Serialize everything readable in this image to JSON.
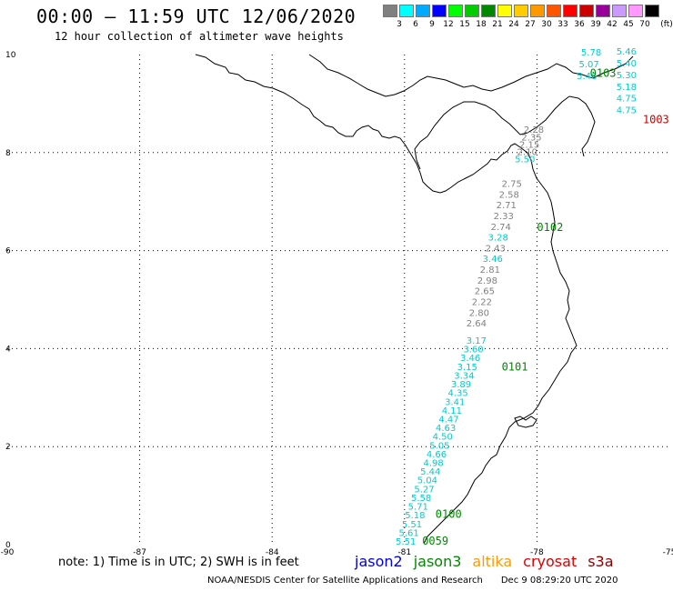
{
  "header": {
    "title": "00:00 – 11:59 UTC 12/06/2020",
    "subtitle": "12 hour collection of altimeter wave heights"
  },
  "colorbar": {
    "unit": "(ft)",
    "items": [
      {
        "label": "3",
        "color": "#808080"
      },
      {
        "label": "6",
        "color": "#00ffff"
      },
      {
        "label": "9",
        "color": "#00aaff"
      },
      {
        "label": "12",
        "color": "#0000ff"
      },
      {
        "label": "15",
        "color": "#00ff00"
      },
      {
        "label": "18",
        "color": "#00cc00"
      },
      {
        "label": "21",
        "color": "#008800"
      },
      {
        "label": "24",
        "color": "#ffff00"
      },
      {
        "label": "27",
        "color": "#ffcc00"
      },
      {
        "label": "30",
        "color": "#ff9900"
      },
      {
        "label": "33",
        "color": "#ff5500"
      },
      {
        "label": "36",
        "color": "#ff0000"
      },
      {
        "label": "39",
        "color": "#cc0000"
      },
      {
        "label": "42",
        "color": "#990099"
      },
      {
        "label": "45",
        "color": "#cc99ff"
      },
      {
        "label": "70",
        "color": "#ff99ff"
      },
      {
        "label": "",
        "color": "#000000"
      }
    ]
  },
  "map": {
    "lon_range": [
      -90,
      -75
    ],
    "lat_range": [
      0,
      10
    ],
    "lon_ticks": [
      {
        "v": -90,
        "label": "-90"
      },
      {
        "v": -87,
        "label": "-87"
      },
      {
        "v": -84,
        "label": "-84"
      },
      {
        "v": -81,
        "label": "-81"
      },
      {
        "v": -78,
        "label": "-78"
      },
      {
        "v": -75,
        "label": "-75"
      }
    ],
    "lat_ticks": [
      {
        "v": 0,
        "label": "0"
      },
      {
        "v": 2,
        "label": "2"
      },
      {
        "v": 4,
        "label": "4"
      },
      {
        "v": 6,
        "label": "6"
      },
      {
        "v": 8,
        "label": "8"
      },
      {
        "v": 10,
        "label": "10"
      }
    ],
    "gridlines": true,
    "track_labels": [
      {
        "text": "0059",
        "lon": -80.6,
        "lat": 0.0,
        "color": "#008800"
      },
      {
        "text": "0100",
        "lon": -80.3,
        "lat": 0.55,
        "color": "#008800"
      },
      {
        "text": "0101",
        "lon": -78.8,
        "lat": 3.55,
        "color": "#008800"
      },
      {
        "text": "0102",
        "lon": -78.0,
        "lat": 6.4,
        "color": "#008800"
      },
      {
        "text": "0103",
        "lon": -76.8,
        "lat": 9.55,
        "color": "#008800"
      },
      {
        "text": "1003",
        "lon": -75.6,
        "lat": 8.6,
        "color": "#cc0000"
      }
    ],
    "tracks": [
      {
        "name": "jason3 south",
        "start": [
          -81.2,
          0.0
        ],
        "end": [
          -79.6,
          4.1
        ],
        "values": [
          {
            "v": "5.51",
            "c": "#00cccc"
          },
          {
            "v": "5.61",
            "c": "#00cccc"
          },
          {
            "v": "5.51",
            "c": "#00cccc"
          },
          {
            "v": "5.18",
            "c": "#00cccc"
          },
          {
            "v": "5.71",
            "c": "#00cccc"
          },
          {
            "v": "5.58",
            "c": "#00cccc"
          },
          {
            "v": "5.27",
            "c": "#00cccc"
          },
          {
            "v": "5.04",
            "c": "#00cccc"
          },
          {
            "v": "5.44",
            "c": "#00cccc"
          },
          {
            "v": "4.98",
            "c": "#00cccc"
          },
          {
            "v": "4.66",
            "c": "#00cccc"
          },
          {
            "v": "5.05",
            "c": "#00cccc"
          },
          {
            "v": "4.50",
            "c": "#00cccc"
          },
          {
            "v": "4.63",
            "c": "#00cccc"
          },
          {
            "v": "4.47",
            "c": "#00cccc"
          },
          {
            "v": "4.11",
            "c": "#00cccc"
          },
          {
            "v": "3.41",
            "c": "#00cccc"
          },
          {
            "v": "4.35",
            "c": "#00cccc"
          },
          {
            "v": "3.89",
            "c": "#00cccc"
          },
          {
            "v": "3.34",
            "c": "#00cccc"
          },
          {
            "v": "3.15",
            "c": "#00cccc"
          },
          {
            "v": "3.46",
            "c": "#00cccc"
          },
          {
            "v": "3.60",
            "c": "#00cccc"
          },
          {
            "v": "3.17",
            "c": "#00cccc"
          }
        ]
      },
      {
        "name": "jason3 middle",
        "start": [
          -79.6,
          4.45
        ],
        "end": [
          -78.8,
          7.3
        ],
        "values": [
          {
            "v": "2.64",
            "c": "#808080"
          },
          {
            "v": "2.80",
            "c": "#808080"
          },
          {
            "v": "2.22",
            "c": "#808080"
          },
          {
            "v": "2.65",
            "c": "#808080"
          },
          {
            "v": "2.98",
            "c": "#808080"
          },
          {
            "v": "2.81",
            "c": "#808080"
          },
          {
            "v": "3.46",
            "c": "#00cccc"
          },
          {
            "v": "2.43",
            "c": "#808080"
          },
          {
            "v": "3.28",
            "c": "#00cccc"
          },
          {
            "v": "2.74",
            "c": "#808080"
          },
          {
            "v": "2.33",
            "c": "#808080"
          },
          {
            "v": "2.71",
            "c": "#808080"
          },
          {
            "v": "2.58",
            "c": "#808080"
          },
          {
            "v": "2.75",
            "c": "#808080"
          }
        ]
      },
      {
        "name": "jason3 north",
        "start": [
          -78.5,
          7.8
        ],
        "end": [
          -78.3,
          8.4
        ],
        "values": [
          {
            "v": "5.50",
            "c": "#00cccc"
          },
          {
            "v": "2.10",
            "c": "#808080"
          },
          {
            "v": "2.15",
            "c": "#808080"
          },
          {
            "v": "2.35",
            "c": "#808080"
          },
          {
            "v": "2.28",
            "c": "#808080"
          }
        ]
      },
      {
        "name": "jason3 caribbean right",
        "start": [
          -76.2,
          8.8
        ],
        "end": [
          -76.2,
          10.0
        ],
        "values": [
          {
            "v": "4.75",
            "c": "#00cccc"
          },
          {
            "v": "4.75",
            "c": "#00cccc"
          },
          {
            "v": "5.18",
            "c": "#00cccc"
          },
          {
            "v": "5.30",
            "c": "#00cccc"
          },
          {
            "v": "5.40",
            "c": "#00cccc"
          },
          {
            "v": "5.46",
            "c": "#00cccc"
          }
        ]
      },
      {
        "name": "jason3 caribbean left",
        "start": [
          -77.1,
          9.5
        ],
        "end": [
          -77.0,
          9.98
        ],
        "values": [
          {
            "v": "5.46",
            "c": "#00cccc"
          },
          {
            "v": "5.07",
            "c": "#00cccc"
          },
          {
            "v": "5.78",
            "c": "#00cccc"
          }
        ]
      }
    ]
  },
  "footer": {
    "note": "note:  1) Time is in UTC;  2) SWH is in feet",
    "legend": [
      {
        "label": "jason2",
        "color": "#0000dd"
      },
      {
        "label": "jason3",
        "color": "#008800"
      },
      {
        "label": "altika",
        "color": "#ff9900"
      },
      {
        "label": "cryosat",
        "color": "#dd0000"
      },
      {
        "label": "s3a",
        "color": "#880000"
      }
    ],
    "credit_left": "NOAA/NESDIS Center for Satellite Applications and Research",
    "credit_right": "Dec  9 08:29:20 UTC 2020"
  }
}
